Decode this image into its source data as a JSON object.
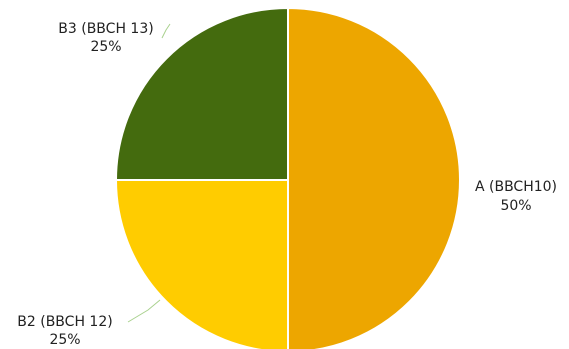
{
  "chart_data": {
    "type": "pie",
    "slices": [
      {
        "label": "A (BBCH10)",
        "value": 50,
        "percent_label": "50%",
        "color": "#EDA600"
      },
      {
        "label": "B2 (BBCH 12)",
        "value": 25,
        "percent_label": "25%",
        "color": "#FFCC00"
      },
      {
        "label": "B3 (BBCH 13)",
        "value": 25,
        "percent_label": "25%",
        "color": "#446B0E"
      }
    ],
    "legend": "none",
    "leader_line_color": "#A9D18E"
  }
}
